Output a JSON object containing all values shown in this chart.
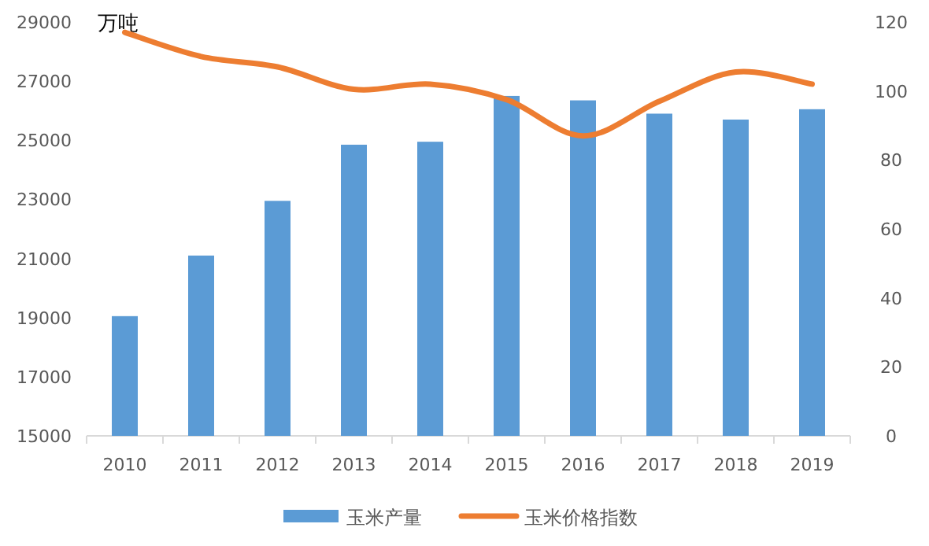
{
  "chart_data": {
    "type": "bar",
    "ylabel": "万吨",
    "categories": [
      "2010",
      "2011",
      "2012",
      "2013",
      "2014",
      "2015",
      "2016",
      "2017",
      "2018",
      "2019"
    ],
    "series": [
      {
        "name": "玉米产量",
        "color": "#5b9bd5",
        "values": [
          19050,
          21100,
          22950,
          24850,
          24950,
          26500,
          26350,
          25900,
          25700,
          26050
        ]
      },
      {
        "name": "玉米价格指数",
        "type": "line",
        "axis": "y2",
        "color": "#ed7d31",
        "marker": "none",
        "values": [
          117,
          110,
          107,
          100.5,
          102,
          97.5,
          87,
          97,
          105.5,
          102
        ]
      }
    ],
    "ylim": [
      15000,
      29000
    ],
    "yticks": [
      15000,
      17000,
      19000,
      21000,
      23000,
      25000,
      27000,
      29000
    ],
    "y2lim": [
      0,
      120
    ],
    "y2ticks": [
      0,
      20,
      40,
      60,
      80,
      100,
      120
    ],
    "legend": "bottom",
    "grid": false
  }
}
